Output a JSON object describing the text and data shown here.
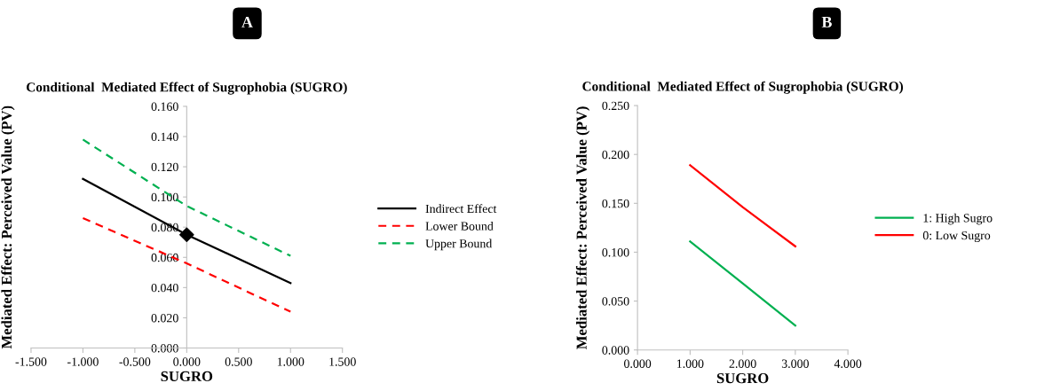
{
  "chart_data": [
    {
      "type": "line",
      "annotations": [
        "A"
      ],
      "title": "Conditional  Mediated Effect of Sugrophobia (SUGRO)",
      "xlabel": "SUGRO",
      "ylabel": "Mediated Effect: Perceived Value (PV)",
      "x": [
        -1.0,
        0.0,
        1.0
      ],
      "series": [
        {
          "name": "Indirect Effect",
          "color": "#000000",
          "values": [
            0.112,
            0.075,
            0.043
          ],
          "line_style": "solid"
        },
        {
          "name": "Lower Bound",
          "color": "#ff0000",
          "values": [
            0.086,
            0.056,
            0.024
          ],
          "line_style": "dashed"
        },
        {
          "name": "Upper Bound",
          "color": "#00b050",
          "values": [
            0.138,
            0.094,
            0.061
          ],
          "line_style": "dashed"
        },
        {
          "type": "scatter",
          "color": "#000000",
          "x": [
            0.0
          ],
          "values": [
            0.075
          ],
          "marker": "diamond"
        }
      ],
      "xlim": [
        -1.5,
        1.5
      ],
      "xticks": [
        {
          "value": -1.5,
          "label": "-1.500"
        },
        {
          "value": -1.0,
          "label": "-1.000"
        },
        {
          "value": -0.5,
          "label": "-0.500"
        },
        {
          "value": 0,
          "label": "0.000"
        },
        {
          "value": 0.5,
          "label": "0.500"
        },
        {
          "value": 1.0,
          "label": "1.000"
        },
        {
          "value": 1.5,
          "label": "1.500"
        }
      ],
      "ylim": [
        0,
        0.16
      ],
      "yticks": [
        {
          "value": 0,
          "label": "0.000"
        },
        {
          "value": 0.02,
          "label": "0.020"
        },
        {
          "value": 0.04,
          "label": "0.040"
        },
        {
          "value": 0.06,
          "label": "0.060"
        },
        {
          "value": 0.08,
          "label": "0.080"
        },
        {
          "value": 0.1,
          "label": "0.100"
        },
        {
          "value": 0.12,
          "label": "0.120"
        },
        {
          "value": 0.14,
          "label": "0.140"
        },
        {
          "value": 0.16,
          "label": "0.160"
        }
      ],
      "legend": "right",
      "grid": false
    },
    {
      "type": "line",
      "annotations": [
        "B"
      ],
      "title": "Conditional  Mediated Effect of Sugrophobia (SUGRO)",
      "xlabel": "SUGRO",
      "ylabel": "Mediated Effect: Perceived Value (PV)",
      "x": [
        1.0,
        2.0,
        3.0
      ],
      "series": [
        {
          "name": "1: High Sugro",
          "color": "#00b050",
          "values": [
            0.111,
            0.068,
            0.025
          ],
          "line_style": "solid"
        },
        {
          "name": "0: Low Sugro",
          "color": "#ff0000",
          "values": [
            0.189,
            0.146,
            0.106
          ],
          "line_style": "solid"
        }
      ],
      "xlim": [
        0,
        4
      ],
      "xticks": [
        {
          "value": 0,
          "label": "0.000"
        },
        {
          "value": 1,
          "label": "1.000"
        },
        {
          "value": 2,
          "label": "2.000"
        },
        {
          "value": 3,
          "label": "3.000"
        },
        {
          "value": 4,
          "label": "4.000"
        }
      ],
      "ylim": [
        0,
        0.25
      ],
      "yticks": [
        {
          "value": 0,
          "label": "0.000"
        },
        {
          "value": 0.05,
          "label": "0.050"
        },
        {
          "value": 0.1,
          "label": "0.100"
        },
        {
          "value": 0.15,
          "label": "0.150"
        },
        {
          "value": 0.2,
          "label": "0.200"
        },
        {
          "value": 0.25,
          "label": "0.250"
        }
      ],
      "legend": "right",
      "grid": false
    }
  ]
}
